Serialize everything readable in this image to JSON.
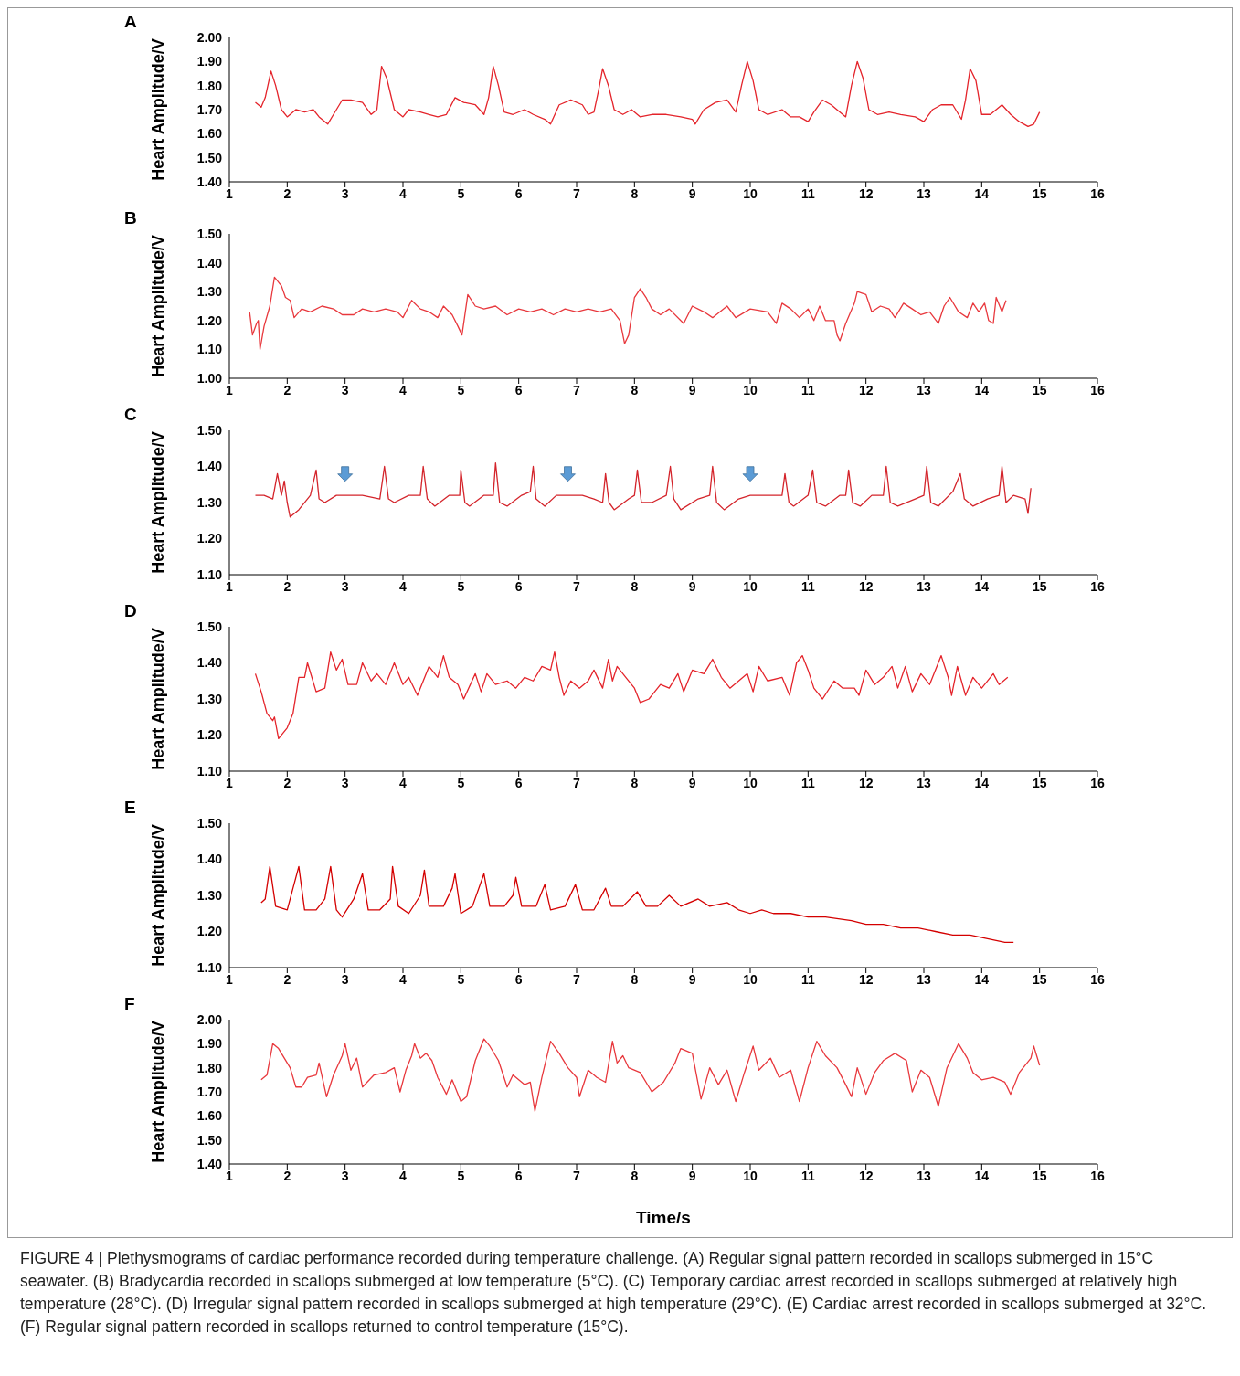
{
  "chart_data": [
    {
      "type": "line",
      "title": "A",
      "ylabel": "Heart Amplitude/V",
      "xlim": [
        1,
        16
      ],
      "xticks": [
        1,
        2,
        3,
        4,
        5,
        6,
        7,
        8,
        9,
        10,
        11,
        12,
        13,
        14,
        15,
        16
      ],
      "ylim": [
        1.4,
        2.0
      ],
      "yticks": [
        {
          "value": 1.4,
          "label": "1.40"
        },
        {
          "value": 1.5,
          "label": "1.50"
        },
        {
          "value": 1.6,
          "label": "1.60"
        },
        {
          "value": 1.7,
          "label": "1.70"
        },
        {
          "value": 1.8,
          "label": "1.80"
        },
        {
          "value": 1.9,
          "label": "1.90"
        },
        {
          "value": 2.0,
          "label": "2.00"
        }
      ],
      "color": "#e4242b",
      "x": [
        1.45,
        1.55,
        1.62,
        1.72,
        1.8,
        1.9,
        2.0,
        2.15,
        2.3,
        2.45,
        2.55,
        2.7,
        2.8,
        2.95,
        3.1,
        3.3,
        3.45,
        3.55,
        3.63,
        3.72,
        3.85,
        4.0,
        4.1,
        4.3,
        4.45,
        4.6,
        4.75,
        4.9,
        5.05,
        5.25,
        5.4,
        5.48,
        5.56,
        5.65,
        5.75,
        5.9,
        6.1,
        6.25,
        6.45,
        6.55,
        6.7,
        6.9,
        7.1,
        7.2,
        7.3,
        7.38,
        7.45,
        7.55,
        7.65,
        7.8,
        7.95,
        8.1,
        8.3,
        8.55,
        8.8,
        9.0,
        9.05,
        9.2,
        9.4,
        9.6,
        9.75,
        9.85,
        9.95,
        10.05,
        10.15,
        10.3,
        10.55,
        10.7,
        10.85,
        11.0,
        11.1,
        11.25,
        11.4,
        11.55,
        11.65,
        11.75,
        11.85,
        11.95,
        12.05,
        12.2,
        12.4,
        12.6,
        12.85,
        13.0,
        13.15,
        13.3,
        13.5,
        13.65,
        13.72,
        13.8,
        13.9,
        14.0,
        14.15,
        14.35,
        14.5,
        14.65,
        14.8,
        14.9,
        15.0
      ],
      "values": [
        1.73,
        1.71,
        1.75,
        1.86,
        1.8,
        1.7,
        1.67,
        1.7,
        1.69,
        1.7,
        1.67,
        1.64,
        1.68,
        1.74,
        1.74,
        1.73,
        1.68,
        1.7,
        1.88,
        1.83,
        1.7,
        1.67,
        1.7,
        1.69,
        1.68,
        1.67,
        1.68,
        1.75,
        1.73,
        1.72,
        1.68,
        1.75,
        1.88,
        1.8,
        1.69,
        1.68,
        1.7,
        1.68,
        1.66,
        1.64,
        1.72,
        1.74,
        1.72,
        1.68,
        1.69,
        1.78,
        1.87,
        1.8,
        1.7,
        1.68,
        1.7,
        1.67,
        1.68,
        1.68,
        1.67,
        1.66,
        1.64,
        1.7,
        1.73,
        1.74,
        1.69,
        1.8,
        1.9,
        1.82,
        1.7,
        1.68,
        1.7,
        1.67,
        1.67,
        1.65,
        1.69,
        1.74,
        1.72,
        1.69,
        1.67,
        1.8,
        1.9,
        1.83,
        1.7,
        1.68,
        1.69,
        1.68,
        1.67,
        1.65,
        1.7,
        1.72,
        1.72,
        1.66,
        1.74,
        1.87,
        1.82,
        1.68,
        1.68,
        1.72,
        1.68,
        1.65,
        1.63,
        1.64,
        1.69
      ]
    },
    {
      "type": "line",
      "title": "B",
      "ylabel": "Heart Amplitude/V",
      "xlim": [
        1,
        16
      ],
      "xticks": [
        1,
        2,
        3,
        4,
        5,
        6,
        7,
        8,
        9,
        10,
        11,
        12,
        13,
        14,
        15,
        16
      ],
      "ylim": [
        1.0,
        1.5
      ],
      "yticks": [
        {
          "value": 1.0,
          "label": "1.00"
        },
        {
          "value": 1.1,
          "label": "1.10"
        },
        {
          "value": 1.2,
          "label": "1.20"
        },
        {
          "value": 1.3,
          "label": "1.30"
        },
        {
          "value": 1.4,
          "label": "1.40"
        },
        {
          "value": 1.5,
          "label": "1.50"
        }
      ],
      "color": "#e8383d",
      "x": [
        1.35,
        1.4,
        1.47,
        1.5,
        1.53,
        1.6,
        1.7,
        1.78,
        1.9,
        1.97,
        2.05,
        2.12,
        2.25,
        2.4,
        2.6,
        2.8,
        2.95,
        3.15,
        3.3,
        3.5,
        3.7,
        3.9,
        4.0,
        4.15,
        4.3,
        4.45,
        4.6,
        4.7,
        4.85,
        4.95,
        5.02,
        5.12,
        5.25,
        5.4,
        5.6,
        5.8,
        6.0,
        6.2,
        6.4,
        6.6,
        6.8,
        7.0,
        7.2,
        7.4,
        7.6,
        7.75,
        7.83,
        7.9,
        8.0,
        8.1,
        8.2,
        8.3,
        8.45,
        8.6,
        8.85,
        9.0,
        9.2,
        9.35,
        9.6,
        9.75,
        10.0,
        10.3,
        10.45,
        10.55,
        10.7,
        10.85,
        11.0,
        11.1,
        11.2,
        11.3,
        11.45,
        11.5,
        11.55,
        11.65,
        11.8,
        11.85,
        12.0,
        12.1,
        12.25,
        12.4,
        12.5,
        12.65,
        12.8,
        12.95,
        13.1,
        13.25,
        13.35,
        13.45,
        13.6,
        13.75,
        13.85,
        13.95,
        14.05,
        14.12,
        14.2,
        14.25,
        14.35,
        14.42
      ],
      "values": [
        1.23,
        1.15,
        1.19,
        1.2,
        1.1,
        1.18,
        1.25,
        1.35,
        1.32,
        1.28,
        1.27,
        1.21,
        1.24,
        1.23,
        1.25,
        1.24,
        1.22,
        1.22,
        1.24,
        1.23,
        1.24,
        1.23,
        1.21,
        1.27,
        1.24,
        1.23,
        1.21,
        1.25,
        1.22,
        1.18,
        1.15,
        1.29,
        1.25,
        1.24,
        1.25,
        1.22,
        1.24,
        1.23,
        1.24,
        1.22,
        1.24,
        1.23,
        1.24,
        1.23,
        1.24,
        1.2,
        1.12,
        1.15,
        1.28,
        1.31,
        1.28,
        1.24,
        1.22,
        1.24,
        1.19,
        1.25,
        1.23,
        1.21,
        1.25,
        1.21,
        1.24,
        1.23,
        1.19,
        1.26,
        1.24,
        1.21,
        1.24,
        1.2,
        1.25,
        1.2,
        1.2,
        1.15,
        1.13,
        1.19,
        1.26,
        1.3,
        1.29,
        1.23,
        1.25,
        1.24,
        1.21,
        1.26,
        1.24,
        1.22,
        1.23,
        1.19,
        1.25,
        1.28,
        1.23,
        1.21,
        1.26,
        1.23,
        1.26,
        1.2,
        1.19,
        1.28,
        1.23,
        1.27
      ]
    },
    {
      "type": "line",
      "title": "C",
      "ylabel": "Heart Amplitude/V",
      "xlim": [
        1,
        16
      ],
      "xticks": [
        1,
        2,
        3,
        4,
        5,
        6,
        7,
        8,
        9,
        10,
        11,
        12,
        13,
        14,
        15,
        16
      ],
      "ylim": [
        1.1,
        1.5
      ],
      "yticks": [
        {
          "value": 1.1,
          "label": "1.10"
        },
        {
          "value": 1.2,
          "label": "1.20"
        },
        {
          "value": 1.3,
          "label": "1.30"
        },
        {
          "value": 1.4,
          "label": "1.40"
        },
        {
          "value": 1.5,
          "label": "1.50"
        }
      ],
      "color": "#d4242b",
      "x": [
        1.45,
        1.6,
        1.75,
        1.83,
        1.9,
        1.95,
        2.0,
        2.05,
        2.2,
        2.4,
        2.5,
        2.55,
        2.65,
        2.85,
        3.0,
        3.3,
        3.6,
        3.68,
        3.75,
        3.85,
        4.1,
        4.3,
        4.35,
        4.42,
        4.55,
        4.8,
        4.98,
        5.0,
        5.07,
        5.15,
        5.4,
        5.56,
        5.6,
        5.67,
        5.8,
        6.05,
        6.2,
        6.25,
        6.3,
        6.45,
        6.65,
        6.85,
        7.1,
        7.3,
        7.45,
        7.5,
        7.56,
        7.65,
        7.9,
        8.0,
        8.05,
        8.12,
        8.3,
        8.55,
        8.62,
        8.68,
        8.8,
        9.1,
        9.3,
        9.35,
        9.42,
        9.55,
        9.8,
        10.0,
        10.3,
        10.55,
        10.6,
        10.67,
        10.75,
        11.0,
        11.08,
        11.15,
        11.3,
        11.55,
        11.65,
        11.7,
        11.77,
        11.9,
        12.1,
        12.3,
        12.35,
        12.42,
        12.55,
        12.85,
        13.0,
        13.05,
        13.12,
        13.25,
        13.5,
        13.63,
        13.7,
        13.85,
        14.1,
        14.3,
        14.35,
        14.42,
        14.55,
        14.75,
        14.8,
        14.85
      ],
      "values": [
        1.32,
        1.32,
        1.31,
        1.38,
        1.32,
        1.36,
        1.3,
        1.26,
        1.28,
        1.32,
        1.39,
        1.31,
        1.3,
        1.32,
        1.32,
        1.32,
        1.31,
        1.4,
        1.31,
        1.3,
        1.32,
        1.32,
        1.4,
        1.31,
        1.29,
        1.32,
        1.32,
        1.39,
        1.3,
        1.29,
        1.32,
        1.32,
        1.41,
        1.3,
        1.29,
        1.32,
        1.33,
        1.4,
        1.31,
        1.29,
        1.32,
        1.32,
        1.32,
        1.31,
        1.3,
        1.38,
        1.3,
        1.28,
        1.31,
        1.32,
        1.39,
        1.3,
        1.3,
        1.32,
        1.4,
        1.31,
        1.28,
        1.31,
        1.32,
        1.4,
        1.3,
        1.28,
        1.31,
        1.32,
        1.32,
        1.32,
        1.38,
        1.3,
        1.29,
        1.32,
        1.39,
        1.3,
        1.29,
        1.32,
        1.32,
        1.39,
        1.3,
        1.29,
        1.32,
        1.32,
        1.4,
        1.3,
        1.29,
        1.31,
        1.32,
        1.4,
        1.3,
        1.29,
        1.33,
        1.38,
        1.31,
        1.29,
        1.31,
        1.32,
        1.4,
        1.3,
        1.32,
        1.31,
        1.27,
        1.34
      ]
    },
    {
      "type": "line",
      "title": "D",
      "ylabel": "Heart Amplitude/V",
      "xlim": [
        1,
        16
      ],
      "xticks": [
        1,
        2,
        3,
        4,
        5,
        6,
        7,
        8,
        9,
        10,
        11,
        12,
        13,
        14,
        15,
        16
      ],
      "ylim": [
        1.1,
        1.5
      ],
      "yticks": [
        {
          "value": 1.1,
          "label": "1.10"
        },
        {
          "value": 1.2,
          "label": "1.20"
        },
        {
          "value": 1.3,
          "label": "1.30"
        },
        {
          "value": 1.4,
          "label": "1.40"
        },
        {
          "value": 1.5,
          "label": "1.50"
        }
      ],
      "color": "#e4242b",
      "x": [
        1.45,
        1.55,
        1.65,
        1.75,
        1.78,
        1.85,
        2.0,
        2.1,
        2.2,
        2.3,
        2.35,
        2.5,
        2.65,
        2.75,
        2.85,
        2.95,
        3.05,
        3.2,
        3.3,
        3.45,
        3.55,
        3.7,
        3.85,
        4.0,
        4.1,
        4.25,
        4.45,
        4.6,
        4.7,
        4.8,
        4.95,
        5.05,
        5.25,
        5.35,
        5.45,
        5.6,
        5.8,
        5.95,
        6.1,
        6.25,
        6.4,
        6.55,
        6.62,
        6.7,
        6.78,
        6.9,
        7.05,
        7.2,
        7.3,
        7.45,
        7.55,
        7.62,
        7.7,
        7.85,
        8.0,
        8.1,
        8.25,
        8.45,
        8.6,
        8.75,
        8.85,
        9.0,
        9.2,
        9.35,
        9.5,
        9.65,
        9.8,
        9.95,
        10.05,
        10.15,
        10.3,
        10.55,
        10.68,
        10.8,
        10.9,
        11.0,
        11.1,
        11.25,
        11.45,
        11.6,
        11.8,
        11.88,
        12.0,
        12.15,
        12.3,
        12.45,
        12.55,
        12.68,
        12.8,
        12.95,
        13.1,
        13.3,
        13.42,
        13.48,
        13.58,
        13.72,
        13.85,
        14.0,
        14.2,
        14.3,
        14.45
      ],
      "values": [
        1.37,
        1.32,
        1.26,
        1.24,
        1.25,
        1.19,
        1.22,
        1.26,
        1.36,
        1.36,
        1.4,
        1.32,
        1.33,
        1.43,
        1.38,
        1.41,
        1.34,
        1.34,
        1.4,
        1.35,
        1.37,
        1.34,
        1.4,
        1.34,
        1.36,
        1.31,
        1.39,
        1.36,
        1.42,
        1.36,
        1.34,
        1.3,
        1.37,
        1.32,
        1.37,
        1.34,
        1.35,
        1.33,
        1.36,
        1.35,
        1.39,
        1.38,
        1.43,
        1.36,
        1.31,
        1.35,
        1.33,
        1.35,
        1.38,
        1.33,
        1.41,
        1.35,
        1.39,
        1.36,
        1.33,
        1.29,
        1.3,
        1.34,
        1.33,
        1.37,
        1.32,
        1.38,
        1.37,
        1.41,
        1.36,
        1.33,
        1.35,
        1.37,
        1.32,
        1.39,
        1.35,
        1.36,
        1.31,
        1.4,
        1.42,
        1.38,
        1.33,
        1.3,
        1.35,
        1.33,
        1.33,
        1.31,
        1.38,
        1.34,
        1.36,
        1.39,
        1.33,
        1.39,
        1.32,
        1.37,
        1.34,
        1.42,
        1.36,
        1.31,
        1.39,
        1.31,
        1.36,
        1.33,
        1.37,
        1.34,
        1.36
      ]
    },
    {
      "type": "line",
      "title": "E",
      "ylabel": "Heart Amplitude/V",
      "xlim": [
        1,
        16
      ],
      "xticks": [
        1,
        2,
        3,
        4,
        5,
        6,
        7,
        8,
        9,
        10,
        11,
        12,
        13,
        14,
        15,
        16
      ],
      "ylim": [
        1.1,
        1.5
      ],
      "yticks": [
        {
          "value": 1.1,
          "label": "1.10"
        },
        {
          "value": 1.2,
          "label": "1.20"
        },
        {
          "value": 1.3,
          "label": "1.30"
        },
        {
          "value": 1.4,
          "label": "1.40"
        },
        {
          "value": 1.5,
          "label": "1.50"
        }
      ],
      "color": "#d40000",
      "x": [
        1.55,
        1.62,
        1.7,
        1.8,
        2.0,
        2.2,
        2.3,
        2.5,
        2.65,
        2.75,
        2.85,
        2.95,
        3.15,
        3.3,
        3.4,
        3.6,
        3.78,
        3.82,
        3.92,
        4.1,
        4.3,
        4.37,
        4.45,
        4.7,
        4.85,
        4.9,
        5.0,
        5.2,
        5.4,
        5.5,
        5.75,
        5.9,
        5.95,
        6.05,
        6.3,
        6.45,
        6.55,
        6.8,
        6.98,
        7.1,
        7.3,
        7.5,
        7.6,
        7.8,
        8.05,
        8.2,
        8.4,
        8.6,
        8.8,
        9.1,
        9.3,
        9.6,
        9.8,
        10.0,
        10.2,
        10.4,
        10.7,
        11.0,
        11.3,
        11.75,
        12.0,
        12.3,
        12.6,
        12.9,
        13.2,
        13.5,
        13.8,
        14.1,
        14.4,
        14.55
      ],
      "values": [
        1.28,
        1.29,
        1.38,
        1.27,
        1.26,
        1.38,
        1.26,
        1.26,
        1.29,
        1.38,
        1.26,
        1.24,
        1.29,
        1.36,
        1.26,
        1.26,
        1.29,
        1.38,
        1.27,
        1.25,
        1.3,
        1.37,
        1.27,
        1.27,
        1.32,
        1.36,
        1.25,
        1.27,
        1.36,
        1.27,
        1.27,
        1.3,
        1.35,
        1.27,
        1.27,
        1.33,
        1.26,
        1.27,
        1.33,
        1.26,
        1.26,
        1.32,
        1.27,
        1.27,
        1.31,
        1.27,
        1.27,
        1.3,
        1.27,
        1.29,
        1.27,
        1.28,
        1.26,
        1.25,
        1.26,
        1.25,
        1.25,
        1.24,
        1.24,
        1.23,
        1.22,
        1.22,
        1.21,
        1.21,
        1.2,
        1.19,
        1.19,
        1.18,
        1.17,
        1.17
      ]
    },
    {
      "type": "line",
      "title": "F",
      "ylabel": "Heart Amplitude/V",
      "xlabel": "Time/s",
      "xlim": [
        1,
        16
      ],
      "xticks": [
        1,
        2,
        3,
        4,
        5,
        6,
        7,
        8,
        9,
        10,
        11,
        12,
        13,
        14,
        15,
        16
      ],
      "ylim": [
        1.4,
        2.0
      ],
      "yticks": [
        {
          "value": 1.4,
          "label": "1.40"
        },
        {
          "value": 1.5,
          "label": "1.50"
        },
        {
          "value": 1.6,
          "label": "1.60"
        },
        {
          "value": 1.7,
          "label": "1.70"
        },
        {
          "value": 1.8,
          "label": "1.80"
        },
        {
          "value": 1.9,
          "label": "1.90"
        },
        {
          "value": 2.0,
          "label": "2.00"
        }
      ],
      "color": "#e8383d",
      "annotations": [
        "FIGURE 4 | Plethysmograms of cardiac performance recorded during temperature challenge. (A) Regular signal pattern recorded in scallops submerged in 15°C seawater. (B) Bradycardia recorded in scallops submerged at low temperature (5°C). (C) Temporary cardiac arrest recorded in scallops submerged at relatively high temperature (28°C). (D) Irregular signal pattern recorded in scallops submerged at high temperature (29°C). (E) Cardiac arrest recorded in scallops submerged at 32°C. (F) Regular signal pattern recorded in scallops returned to control temperature (15°C)."
      ],
      "x": [
        1.55,
        1.65,
        1.75,
        1.85,
        1.95,
        2.05,
        2.15,
        2.25,
        2.35,
        2.5,
        2.55,
        2.68,
        2.8,
        2.95,
        3.0,
        3.1,
        3.2,
        3.3,
        3.5,
        3.7,
        3.85,
        3.95,
        4.05,
        4.15,
        4.2,
        4.3,
        4.4,
        4.5,
        4.6,
        4.75,
        4.85,
        5.0,
        5.1,
        5.25,
        5.4,
        5.5,
        5.65,
        5.8,
        5.9,
        6.1,
        6.2,
        6.28,
        6.4,
        6.55,
        6.7,
        6.85,
        7.0,
        7.05,
        7.2,
        7.35,
        7.5,
        7.62,
        7.7,
        7.8,
        7.9,
        8.1,
        8.3,
        8.5,
        8.7,
        8.8,
        9.0,
        9.15,
        9.3,
        9.45,
        9.6,
        9.75,
        9.9,
        10.05,
        10.15,
        10.35,
        10.5,
        10.7,
        10.85,
        11.0,
        11.15,
        11.3,
        11.5,
        11.65,
        11.75,
        11.85,
        12.0,
        12.15,
        12.3,
        12.5,
        12.7,
        12.8,
        12.95,
        13.1,
        13.25,
        13.4,
        13.6,
        13.75,
        13.85,
        14.0,
        14.2,
        14.4,
        14.5,
        14.65,
        14.85,
        14.9,
        15.0
      ],
      "values": [
        1.75,
        1.77,
        1.9,
        1.88,
        1.84,
        1.8,
        1.72,
        1.72,
        1.76,
        1.77,
        1.82,
        1.68,
        1.77,
        1.85,
        1.9,
        1.79,
        1.84,
        1.72,
        1.77,
        1.78,
        1.8,
        1.7,
        1.79,
        1.85,
        1.9,
        1.84,
        1.86,
        1.83,
        1.76,
        1.69,
        1.75,
        1.66,
        1.68,
        1.83,
        1.92,
        1.89,
        1.83,
        1.72,
        1.77,
        1.73,
        1.74,
        1.62,
        1.76,
        1.91,
        1.86,
        1.8,
        1.76,
        1.68,
        1.79,
        1.76,
        1.74,
        1.91,
        1.82,
        1.85,
        1.8,
        1.78,
        1.7,
        1.74,
        1.82,
        1.88,
        1.86,
        1.67,
        1.8,
        1.73,
        1.79,
        1.66,
        1.78,
        1.89,
        1.79,
        1.84,
        1.76,
        1.79,
        1.66,
        1.8,
        1.91,
        1.85,
        1.8,
        1.73,
        1.68,
        1.8,
        1.69,
        1.78,
        1.83,
        1.86,
        1.83,
        1.7,
        1.79,
        1.76,
        1.64,
        1.8,
        1.9,
        1.84,
        1.78,
        1.75,
        1.76,
        1.74,
        1.69,
        1.78,
        1.84,
        1.89,
        1.81
      ]
    }
  ]
}
